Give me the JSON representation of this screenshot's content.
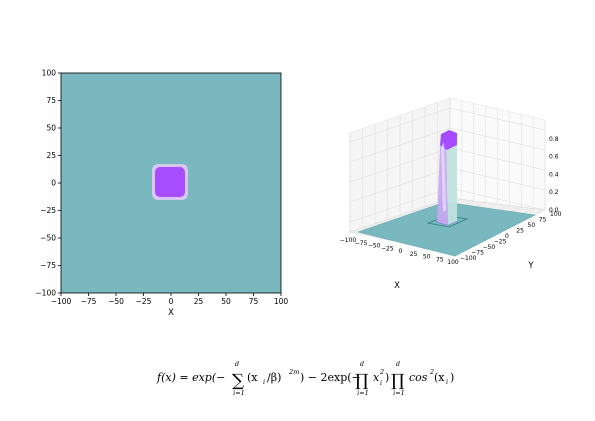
{
  "colors": {
    "surface_teal": "#78b8be",
    "peak_purple": "#a64dff",
    "peak_glow": "#d8c7f2",
    "grid_line": "#dcdcdc",
    "pane": "#f7f7f7"
  },
  "chart_data": [
    {
      "type": "heatmap",
      "title": "",
      "xlabel": "X",
      "ylabel": "",
      "xlim": [
        -100,
        100
      ],
      "ylim": [
        -100,
        100
      ],
      "xticks": [
        "−100",
        "−75",
        "−50",
        "−25",
        "0",
        "25",
        "50",
        "75",
        "100"
      ],
      "yticks": [
        "100",
        "75",
        "50",
        "25",
        "0",
        "−25",
        "−50",
        "−75",
        "−100"
      ],
      "background_value": 0.0,
      "peak_region": {
        "x_range": [
          -13,
          13
        ],
        "y_range": [
          -13,
          13
        ],
        "value": 1.0
      }
    },
    {
      "type": "surface3d",
      "title": "",
      "xlabel": "X",
      "ylabel": "Y",
      "zlabel": "",
      "xlim": [
        -100,
        100
      ],
      "ylim": [
        -100,
        100
      ],
      "zlim": [
        0,
        0.9
      ],
      "xticks": [
        "−100",
        "−75",
        "−50",
        "−25",
        "0",
        "25",
        "50",
        "75",
        "100"
      ],
      "yticks": [
        "−100",
        "−75",
        "−50",
        "−25",
        "0",
        "25",
        "50",
        "75",
        "100"
      ],
      "zticks": [
        "0.0",
        "0.2",
        "0.4",
        "0.6",
        "0.8"
      ],
      "peak_height": 0.9
    }
  ],
  "equation": {
    "lhs": "f(x) = exp(−",
    "sum_sym": "∑",
    "prod_sym": "∏",
    "sum_upper": "d",
    "sum_lower": "i=1",
    "term1": "(x",
    "term1_sub": "i",
    "term1_rest": "/β)",
    "term1_pow": "2m",
    "mid": ") − 2exp(−",
    "term2": "x",
    "term2_sup": "2",
    "term2_sub": "i",
    "mid2": ")",
    "term3": "cos",
    "term3_sup": "2",
    "term3_rest": "(x",
    "term3_sub": "i",
    "term3_end": ")"
  }
}
